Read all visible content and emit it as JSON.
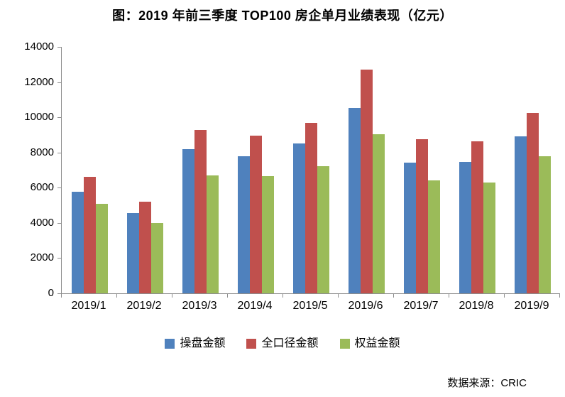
{
  "title": "图：2019 年前三季度 TOP100 房企单月业绩表现（亿元）",
  "source": "数据来源：CRIC",
  "colors": {
    "series_blue": "#4F81BD",
    "series_red": "#C0504D",
    "series_green": "#9BBB59",
    "axis": "#8E8E8E",
    "text": "#000000",
    "background": "#FFFFFF"
  },
  "chart_data": {
    "type": "bar",
    "title": "图：2019 年前三季度 TOP100 房企单月业绩表现（亿元）",
    "categories": [
      "2019/1",
      "2019/2",
      "2019/3",
      "2019/4",
      "2019/5",
      "2019/6",
      "2019/7",
      "2019/8",
      "2019/9"
    ],
    "series": [
      {
        "name": "操盘金额",
        "color": "#4F81BD",
        "values": [
          5780,
          4570,
          8180,
          7770,
          8520,
          10530,
          7440,
          7460,
          8900
        ]
      },
      {
        "name": "全口径金额",
        "color": "#C0504D",
        "values": [
          6600,
          5200,
          9280,
          8940,
          9690,
          12730,
          8740,
          8620,
          10270
        ]
      },
      {
        "name": "权益金额",
        "color": "#9BBB59",
        "values": [
          5080,
          4000,
          6680,
          6640,
          7220,
          9020,
          6430,
          6280,
          7790
        ]
      }
    ],
    "xlabel": "",
    "ylabel": "",
    "ylim": [
      0,
      14000
    ],
    "ytick_step": 2000,
    "yticks": [
      0,
      2000,
      4000,
      6000,
      8000,
      10000,
      12000,
      14000
    ],
    "grid": false,
    "legend_position": "bottom"
  }
}
